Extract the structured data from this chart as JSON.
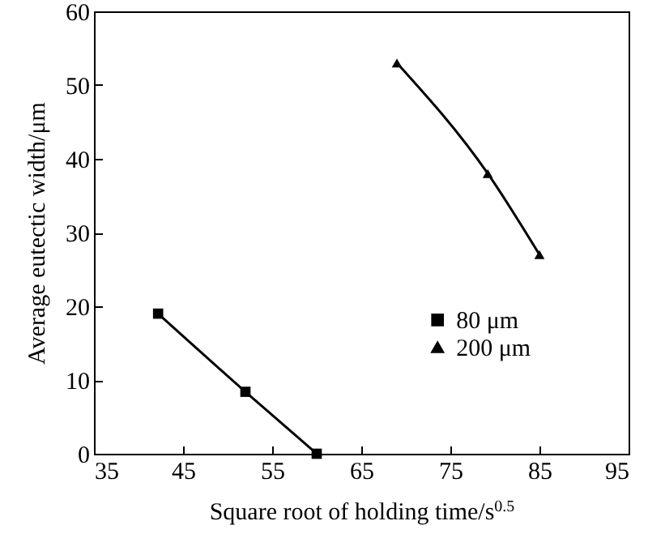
{
  "chart_data": {
    "type": "line",
    "xlabel": "Square root of holding time/s$^{0.5}$",
    "ylabel": "Average eutectic width/μm",
    "xlim": [
      35,
      95
    ],
    "xticks": [
      35,
      45,
      55,
      65,
      75,
      85,
      95
    ],
    "ylim": [
      0,
      60
    ],
    "yticks": [
      0,
      10,
      20,
      30,
      40,
      50,
      60
    ],
    "grid": false,
    "legend": "right",
    "line_style": "solid",
    "series": [
      {
        "name": "80 μm",
        "color": "#000000",
        "marker": "square",
        "x": [
          42.2,
          52,
          60
        ],
        "values": [
          19,
          8.4,
          0
        ]
      },
      {
        "name": "200 μm",
        "color": "#000000",
        "marker": "triangle",
        "x": [
          69,
          79.2,
          85
        ],
        "values": [
          53,
          38,
          27
        ]
      }
    ]
  }
}
